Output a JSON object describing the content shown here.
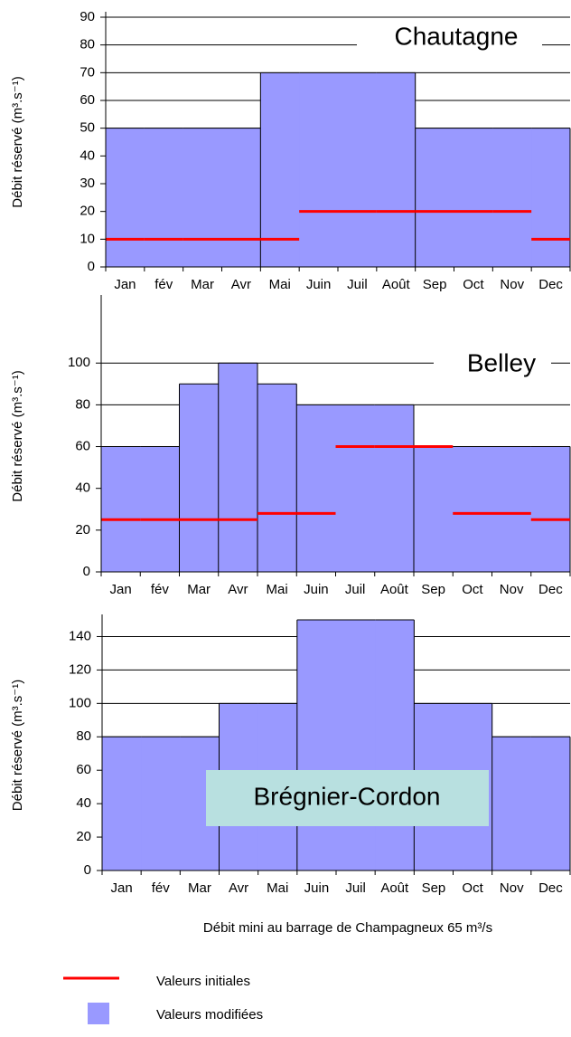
{
  "chart_data": [
    {
      "type": "bar",
      "title": "Chautagne",
      "ylabel": "Débit réservé (m³.s⁻¹)",
      "categories": [
        "Jan",
        "fév",
        "Mar",
        "Avr",
        "Mai",
        "Juin",
        "Juil",
        "Août",
        "Sep",
        "Oct",
        "Nov",
        "Dec"
      ],
      "series": [
        {
          "name": "Valeurs modifiées",
          "color": "#9999ff",
          "kind": "bar",
          "values": [
            50,
            50,
            50,
            50,
            70,
            70,
            70,
            70,
            50,
            50,
            50,
            50
          ]
        },
        {
          "name": "Valeurs initiales",
          "color": "#ff0000",
          "kind": "line",
          "values": [
            10,
            10,
            10,
            10,
            10,
            20,
            20,
            20,
            20,
            20,
            20,
            10
          ]
        }
      ],
      "ylim": [
        0,
        90
      ],
      "yticks": [
        0,
        10,
        20,
        30,
        40,
        50,
        60,
        70,
        80,
        90
      ],
      "grid": true
    },
    {
      "type": "bar",
      "title": "Belley",
      "ylabel": "Débit réservé (m³.s⁻¹)",
      "categories": [
        "Jan",
        "fév",
        "Mar",
        "Avr",
        "Mai",
        "Juin",
        "Juil",
        "Août",
        "Sep",
        "Oct",
        "Nov",
        "Dec"
      ],
      "series": [
        {
          "name": "Valeurs modifiées",
          "color": "#9999ff",
          "kind": "bar",
          "values": [
            60,
            60,
            90,
            100,
            90,
            80,
            80,
            80,
            60,
            60,
            60,
            60
          ]
        },
        {
          "name": "Valeurs initiales",
          "color": "#ff0000",
          "kind": "line",
          "values": [
            25,
            25,
            25,
            25,
            28,
            28,
            60,
            60,
            60,
            28,
            28,
            25
          ]
        }
      ],
      "ylim": [
        0,
        130
      ],
      "yticks": [
        0,
        20,
        40,
        60,
        80,
        100
      ],
      "grid": true
    },
    {
      "type": "bar",
      "title": "Brégnier-Cordon",
      "ylabel": "Débit réservé (m³.s⁻¹)",
      "caption": "Débit mini au barrage de Champagneux 65 m³/s",
      "categories": [
        "Jan",
        "fév",
        "Mar",
        "Avr",
        "Mai",
        "Juin",
        "Juil",
        "Août",
        "Sep",
        "Oct",
        "Nov",
        "Dec"
      ],
      "series": [
        {
          "name": "Valeurs modifiées",
          "color": "#9999ff",
          "kind": "bar",
          "values": [
            80,
            80,
            80,
            100,
            100,
            150,
            150,
            150,
            100,
            100,
            80,
            80
          ]
        }
      ],
      "ylim": [
        0,
        150
      ],
      "yticks": [
        0,
        20,
        40,
        60,
        80,
        100,
        120,
        140
      ],
      "grid": true
    }
  ]
}
